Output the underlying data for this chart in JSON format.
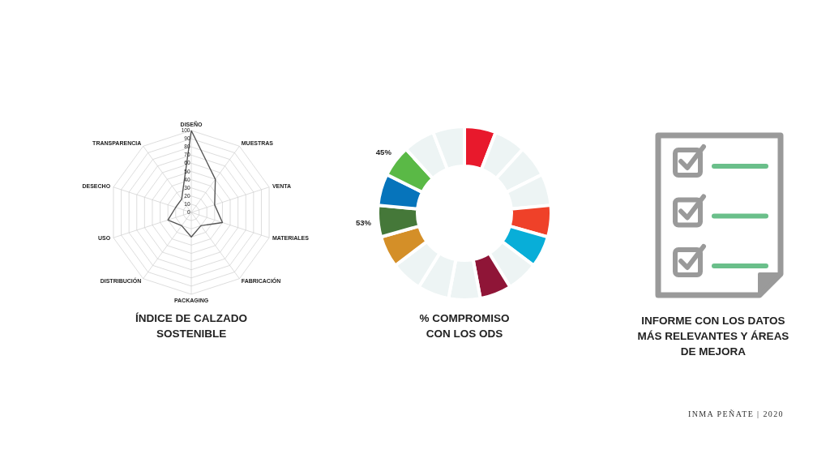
{
  "chart_data": [
    {
      "type": "radar",
      "title": "ÍNDICE DE CALZADO SOSTENIBLE",
      "categories": [
        "DISEÑO",
        "MUESTRAS",
        "VENTA",
        "MATERIALES",
        "FABRICACIÓN",
        "PACKAGING",
        "DISTRIBUCIÓN",
        "USO",
        "DESECHO",
        "TRANSPARENCIA"
      ],
      "series": [
        {
          "color": "#555555",
          "values": [
            100,
            50,
            30,
            40,
            20,
            30,
            20,
            30,
            20,
            20
          ]
        }
      ],
      "ylim": [
        0,
        100
      ],
      "yticks": [
        0,
        10,
        20,
        30,
        40,
        50,
        60,
        70,
        80,
        90,
        100
      ],
      "grid": true
    },
    {
      "type": "donut",
      "title": "% COMPROMISO CON LOS ODS",
      "categories": [
        null,
        null,
        null,
        null,
        null,
        null,
        null,
        null,
        null,
        null,
        null,
        null,
        null,
        null,
        null,
        null,
        null
      ],
      "values": [
        5.88,
        5.88,
        5.88,
        5.88,
        5.88,
        5.88,
        5.88,
        5.88,
        5.88,
        5.88,
        5.88,
        5.88,
        5.88,
        5.88,
        5.88,
        5.88,
        5.88
      ],
      "colors": [
        "#e8192c",
        "#edf4f4",
        "#edf4f4",
        "#edf4f4",
        "#ef4129",
        "#08aed8",
        "#edf4f4",
        "#8f1537",
        "#edf4f4",
        "#edf4f4",
        "#edf4f4",
        "#d48f28",
        "#457839",
        "#0674bb",
        "#5ab946",
        "#edf4f4",
        "#edf4f4"
      ],
      "annotations": [
        "45%",
        "53%"
      ]
    },
    {
      "type": "other",
      "title": "INFORME CON LOS DATOS MÁS RELEVANTES Y ÁREAS DE MEJORA",
      "annotations": [
        "INMA PEÑATE | 2020"
      ]
    }
  ]
}
